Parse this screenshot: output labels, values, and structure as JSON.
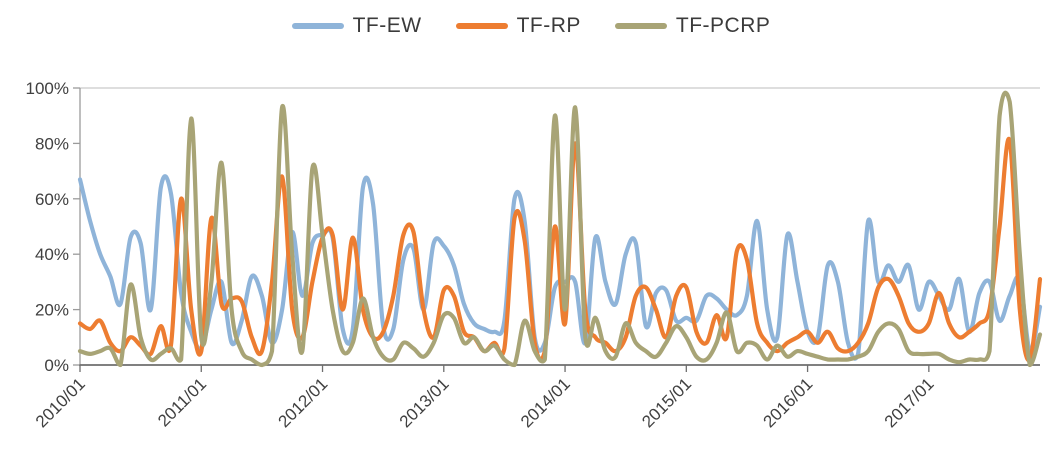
{
  "chart_data": {
    "type": "line",
    "title": "",
    "xlabel": "",
    "ylabel": "",
    "ylim": [
      0,
      100
    ],
    "grid": "top-border-only",
    "legend_position": "top-center",
    "y_ticks": [
      "0%",
      "20%",
      "40%",
      "60%",
      "80%",
      "100%"
    ],
    "x_tick_labels": [
      "2010/01",
      "2011/01",
      "2012/01",
      "2013/01",
      "2014/01",
      "2015/01",
      "2016/01",
      "2017/01"
    ],
    "x": [
      "2010/01",
      "2010/02",
      "2010/03",
      "2010/04",
      "2010/05",
      "2010/06",
      "2010/07",
      "2010/08",
      "2010/09",
      "2010/10",
      "2010/11",
      "2010/12",
      "2011/01",
      "2011/02",
      "2011/03",
      "2011/04",
      "2011/05",
      "2011/06",
      "2011/07",
      "2011/08",
      "2011/09",
      "2011/10",
      "2011/11",
      "2011/12",
      "2012/01",
      "2012/02",
      "2012/03",
      "2012/04",
      "2012/05",
      "2012/06",
      "2012/07",
      "2012/08",
      "2012/09",
      "2012/10",
      "2012/11",
      "2012/12",
      "2013/01",
      "2013/02",
      "2013/03",
      "2013/04",
      "2013/05",
      "2013/06",
      "2013/07",
      "2013/08",
      "2013/09",
      "2013/10",
      "2013/11",
      "2013/12",
      "2014/01",
      "2014/02",
      "2014/03",
      "2014/04",
      "2014/05",
      "2014/06",
      "2014/07",
      "2014/08",
      "2014/09",
      "2014/10",
      "2014/11",
      "2014/12",
      "2015/01",
      "2015/02",
      "2015/03",
      "2015/04",
      "2015/05",
      "2015/06",
      "2015/07",
      "2015/08",
      "2015/09",
      "2015/10",
      "2015/11",
      "2015/12",
      "2016/01",
      "2016/02",
      "2016/03",
      "2016/04",
      "2016/05",
      "2016/06",
      "2016/07",
      "2016/08",
      "2016/09",
      "2016/10",
      "2016/11",
      "2016/12",
      "2017/01",
      "2017/02",
      "2017/03",
      "2017/04",
      "2017/05",
      "2017/06",
      "2017/07",
      "2017/08",
      "2017/09",
      "2017/10",
      "2017/11",
      "2017/12"
    ],
    "series": [
      {
        "name": "TF-EW",
        "color": "#8FB4D9",
        "values": [
          67,
          52,
          40,
          32,
          22,
          46,
          44,
          20,
          64,
          62,
          26,
          12,
          6,
          20,
          30,
          8,
          16,
          32,
          25,
          8,
          20,
          48,
          25,
          44,
          47,
          46,
          13,
          13,
          64,
          58,
          14,
          13,
          38,
          42,
          20,
          44,
          43,
          36,
          22,
          15,
          13,
          12,
          16,
          60,
          52,
          10,
          8,
          28,
          30,
          30,
          8,
          46,
          30,
          22,
          40,
          44,
          14,
          26,
          27,
          16,
          17,
          16,
          25,
          24,
          20,
          18,
          25,
          52,
          20,
          10,
          47,
          30,
          12,
          10,
          36,
          30,
          8,
          4,
          52,
          30,
          36,
          30,
          36,
          20,
          30,
          25,
          20,
          31,
          12,
          26,
          30,
          16,
          25,
          31,
          5,
          21
        ]
      },
      {
        "name": "TF-RP",
        "color": "#ED7D31",
        "values": [
          15,
          13,
          16,
          8,
          5,
          10,
          7,
          4,
          14,
          7,
          60,
          20,
          5,
          53,
          22,
          24,
          23,
          10,
          5,
          30,
          68,
          20,
          10,
          30,
          46,
          47,
          20,
          46,
          20,
          10,
          12,
          25,
          47,
          48,
          20,
          10,
          27,
          25,
          12,
          10,
          5,
          8,
          6,
          53,
          45,
          8,
          5,
          50,
          15,
          80,
          20,
          10,
          8,
          5,
          10,
          25,
          28,
          20,
          10,
          25,
          28,
          12,
          8,
          18,
          10,
          41,
          38,
          15,
          8,
          5,
          8,
          10,
          12,
          8,
          12,
          6,
          5,
          8,
          15,
          28,
          31,
          25,
          15,
          12,
          15,
          26,
          15,
          10,
          12,
          15,
          20,
          50,
          81,
          20,
          2,
          31
        ]
      },
      {
        "name": "TF-PCRP",
        "color": "#A8A476",
        "values": [
          5,
          4,
          5,
          6,
          0,
          29,
          10,
          2,
          4,
          6,
          2,
          89,
          10,
          30,
          73,
          20,
          5,
          2,
          0,
          5,
          93,
          40,
          5,
          71,
          47,
          20,
          5,
          8,
          24,
          10,
          3,
          2,
          8,
          6,
          3,
          8,
          18,
          17,
          8,
          10,
          5,
          7,
          2,
          0,
          16,
          5,
          2,
          90,
          20,
          93,
          10,
          17,
          5,
          3,
          15,
          8,
          5,
          3,
          8,
          14,
          10,
          3,
          2,
          8,
          19,
          5,
          8,
          7,
          2,
          7,
          3,
          5,
          4,
          3,
          2,
          2,
          2,
          3,
          5,
          12,
          15,
          13,
          5,
          4,
          4,
          4,
          2,
          1,
          2,
          2,
          5,
          90,
          95,
          40,
          0,
          11
        ]
      }
    ]
  }
}
